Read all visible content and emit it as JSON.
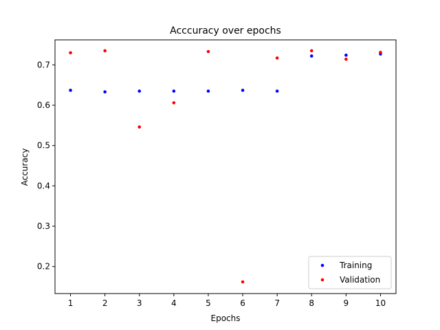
{
  "chart_data": {
    "type": "scatter",
    "title": "Acccuracy over epochs",
    "xlabel": "Epochs",
    "ylabel": "Accuracy",
    "x": [
      1,
      2,
      3,
      4,
      5,
      6,
      7,
      8,
      9,
      10
    ],
    "xticks": [
      "1",
      "2",
      "3",
      "4",
      "5",
      "6",
      "7",
      "8",
      "9",
      "10"
    ],
    "yticks": [
      "0.2",
      "0.3",
      "0.4",
      "0.5",
      "0.6",
      "0.7"
    ],
    "xlim": [
      0.55,
      10.45
    ],
    "ylim": [
      0.133,
      0.762
    ],
    "grid": false,
    "legend_position": "lower-right",
    "series": [
      {
        "name": "Training",
        "color": "#0000ff",
        "values": [
          0.637,
          0.633,
          0.635,
          0.635,
          0.635,
          0.637,
          0.635,
          0.722,
          0.724,
          0.727
        ]
      },
      {
        "name": "Validation",
        "color": "#ff0000",
        "values": [
          0.73,
          0.735,
          0.546,
          0.606,
          0.733,
          0.162,
          0.717,
          0.735,
          0.714,
          0.731
        ]
      }
    ]
  }
}
